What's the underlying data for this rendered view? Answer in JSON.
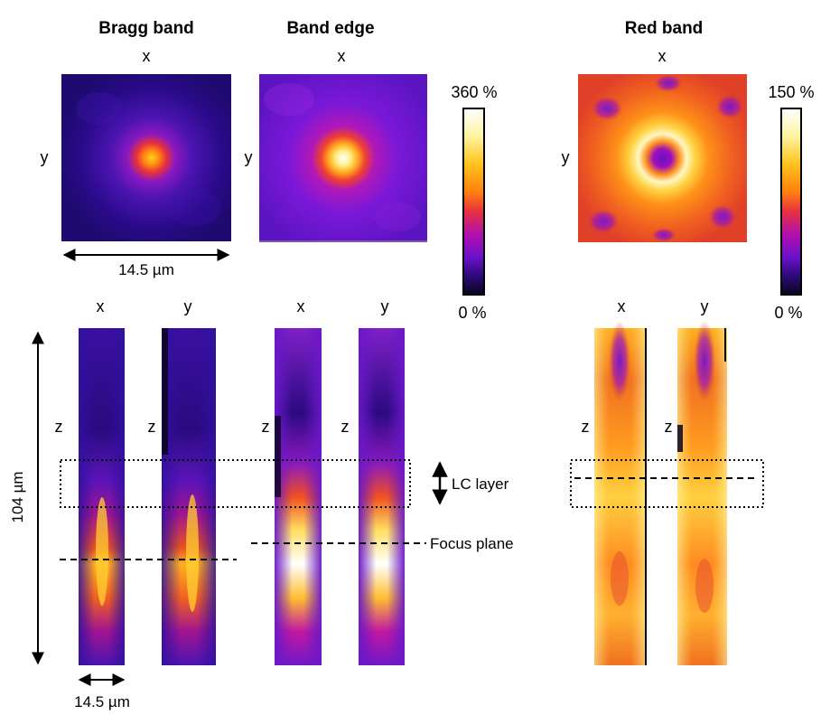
{
  "titles": {
    "bragg": "Bragg band",
    "edge": "Band edge",
    "red": "Red band"
  },
  "axis_labels": {
    "x": "x",
    "y": "y",
    "z": "z"
  },
  "scale": {
    "inplane_width": "14.5 µm",
    "axial_length": "104 µm",
    "column_width": "14.5 µm"
  },
  "colorbar_left": {
    "max": "360 %",
    "min": "0 %"
  },
  "colorbar_right": {
    "max": "150 %",
    "min": "0 %"
  },
  "annotations": {
    "lc_layer": "LC layer",
    "focus_plane": "Focus plane"
  },
  "colormap": [
    "#0b0320",
    "#2c0a78",
    "#6a10c8",
    "#b010b0",
    "#e8323c",
    "#ff7f10",
    "#ffc21a",
    "#fff3a0",
    "#ffffff"
  ]
}
